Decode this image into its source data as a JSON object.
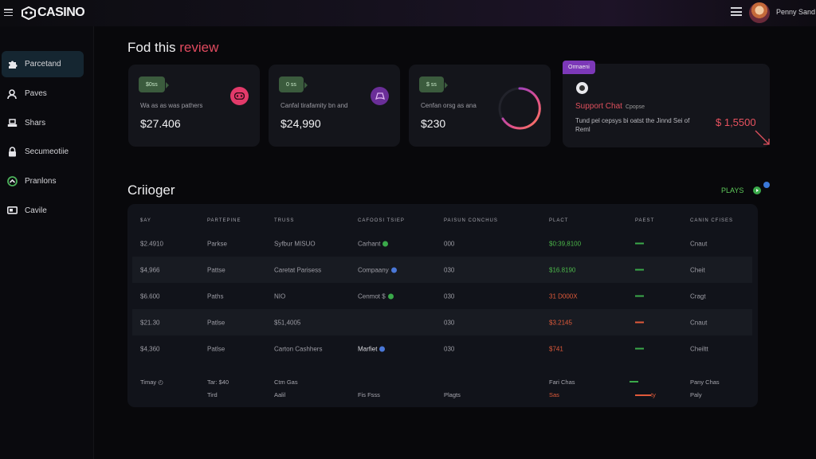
{
  "header": {
    "logo_text": "CASINO",
    "user_name": "Penny Sand"
  },
  "sidebar": {
    "items": [
      {
        "label": "Parcetand",
        "icon": "puzzle-icon",
        "active": true
      },
      {
        "label": "Paves",
        "icon": "user-icon",
        "active": false
      },
      {
        "label": "Shars",
        "icon": "stack-icon",
        "active": false
      },
      {
        "label": "Secumeotiie",
        "icon": "lock-icon",
        "active": false
      },
      {
        "label": "Pranlons",
        "icon": "shield-icon",
        "active": false
      },
      {
        "label": "Cavile",
        "icon": "monitor-icon",
        "active": false
      }
    ]
  },
  "overview": {
    "title_main": "Fod this",
    "title_accent": "review"
  },
  "cards": [
    {
      "tag": "$0ss",
      "desc": "Wa as as was pathers",
      "value": "$27.406",
      "icon": "gamepad-icon",
      "icon_color": "#e23a6a"
    },
    {
      "tag": "0 ss",
      "desc": "Canfal tirafamity bn and",
      "value": "$24,990",
      "icon": "controller-icon",
      "icon_color": "#7a3aa8"
    },
    {
      "tag": "$ ss",
      "desc": "Cenfan orsg as ana",
      "value": "$230",
      "icon": "ring-icon",
      "icon_color": "#e0508a"
    }
  ],
  "support": {
    "tag": "Ormaeni",
    "title": "Support Chat",
    "subtitle": "Cpopse",
    "desc": "Tund pel cepsys bi oatst the Jinnd Sei of Reml",
    "amount": "$ 1,5500"
  },
  "table": {
    "title": "Criioger",
    "action_label": "PLAYS",
    "headers": [
      "$AY",
      "PARTEPINE",
      "TRUSS",
      "CAFOOSI TSIEP",
      "PAISUN CONCHUS",
      "PLACT",
      "PAEST",
      "CANIN CFISES"
    ],
    "rows": [
      {
        "c1": "$2.4910",
        "c2": "Parkse",
        "c3": "Syfbur MISUO",
        "c4": "Carhant",
        "c4_dot": "#3aa94a",
        "c5": "000",
        "c6": "$0:39,8100",
        "c6_color": "#4cb84a",
        "dash_color": "#3aa94a",
        "c8": "Cnaut"
      },
      {
        "c1": "$4,966",
        "c2": "Pattse",
        "c3": "Caretat Parisess",
        "c4": "Compaany",
        "c4_dot": "#4a78d8",
        "c5": "030",
        "c6": "$16.8190",
        "c6_color": "#4cb84a",
        "dash_color": "#3aa94a",
        "c8": "Cheit"
      },
      {
        "c1": "$6.600",
        "c2": "Paths",
        "c3": "NIO",
        "c4": "Cenmot $",
        "c4_dot": "#3aa94a",
        "c5": "030",
        "c6": "31 D000X",
        "c6_color": "#e05a3a",
        "dash_color": "#3aa94a",
        "c8": "Cragt"
      },
      {
        "c1": "$21.30",
        "c2": "Patlse",
        "c3": "$51,4005",
        "c4": "",
        "c4_dot": "",
        "c5": "030",
        "c6": "$3.2145",
        "c6_color": "#e05a3a",
        "dash_color": "#e05a3a",
        "c8": "Cnaut"
      },
      {
        "c1": "$4,360",
        "c2": "Patlse",
        "c3": "Carton Cashhers",
        "c4": "Marfiet",
        "c4_dot": "#4a78d8",
        "c5": "030",
        "c6": "$741",
        "c6_color": "#e05a3a",
        "dash_color": "#3aa94a",
        "c8": "Cheiltt"
      }
    ],
    "footer": {
      "left": "Timay",
      "col2_top": "Tar: $40",
      "col2_bottom": "Tird",
      "col3_top": "Ctm Gas",
      "col3_bottom": "Aalil",
      "col4_bottom": "Fis Fsss",
      "col5_bottom": "Plagts",
      "col6_top": "Fari Chas",
      "col6_bottom": "Sas",
      "col7_bottom": "ty",
      "col8_top": "Pany Chas",
      "col8_bottom": "Paly"
    }
  }
}
